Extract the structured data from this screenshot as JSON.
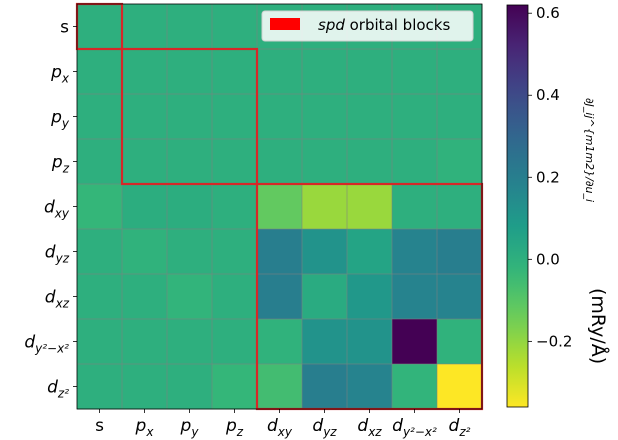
{
  "chart_data": {
    "type": "heatmap",
    "rows": [
      "s",
      "p_x",
      "p_y",
      "p_z",
      "d_xy",
      "d_yz",
      "d_xz",
      "d_y²−x²",
      "d_z²"
    ],
    "cols": [
      "s",
      "p_x",
      "p_y",
      "p_z",
      "d_xy",
      "d_yz",
      "d_xz",
      "d_y²−x²",
      "d_z²"
    ],
    "values": [
      [
        0.0,
        0.0,
        0.0,
        0.0,
        0.0,
        0.0,
        0.0,
        0.0,
        0.0
      ],
      [
        0.0,
        0.0,
        0.0,
        0.0,
        0.0,
        0.0,
        0.0,
        0.0,
        0.0
      ],
      [
        0.0,
        0.0,
        0.0,
        0.0,
        0.0,
        0.0,
        0.0,
        0.0,
        0.0
      ],
      [
        0.0,
        0.0,
        0.0,
        0.0,
        0.0,
        0.0,
        0.0,
        0.0,
        -0.01
      ],
      [
        -0.03,
        0.01,
        0.01,
        0.0,
        -0.12,
        -0.21,
        -0.21,
        0.0,
        0.0
      ],
      [
        0.0,
        -0.01,
        0.0,
        0.0,
        0.2,
        0.12,
        0.05,
        0.18,
        0.2
      ],
      [
        0.0,
        0.0,
        -0.02,
        0.0,
        0.2,
        0.02,
        0.1,
        0.18,
        0.18
      ],
      [
        0.0,
        0.0,
        0.0,
        0.0,
        -0.01,
        0.12,
        0.12,
        0.62,
        -0.01
      ],
      [
        0.0,
        0.0,
        0.0,
        -0.03,
        -0.06,
        0.2,
        0.18,
        -0.02,
        -0.36
      ]
    ],
    "vmin": -0.36,
    "vmax": 0.62,
    "colormap": "viridis_r",
    "colorbar_ticks": [
      0.6,
      0.4,
      0.2,
      0.0,
      -0.2
    ],
    "colorbar_tick_labels": [
      "0.6",
      "0.4",
      "0.2",
      "0.0",
      "−0.2"
    ],
    "colorbar_label": "(mRy/Å)",
    "colorbar_symbol": "∂J_ij^{m1m2}/∂u_i",
    "legend": {
      "label_italic": "spd",
      "label_rest": " orbital blocks",
      "swatch_color": "#ff0000",
      "position": "top-right"
    },
    "blocks": [
      {
        "row_start": 0,
        "row_end": 1,
        "col_start": 0,
        "col_end": 1
      },
      {
        "row_start": 1,
        "row_end": 4,
        "col_start": 1,
        "col_end": 4
      },
      {
        "row_start": 4,
        "row_end": 9,
        "col_start": 4,
        "col_end": 9
      }
    ],
    "block_color": "#d62728",
    "grid": true,
    "grid_color": "#808080"
  }
}
